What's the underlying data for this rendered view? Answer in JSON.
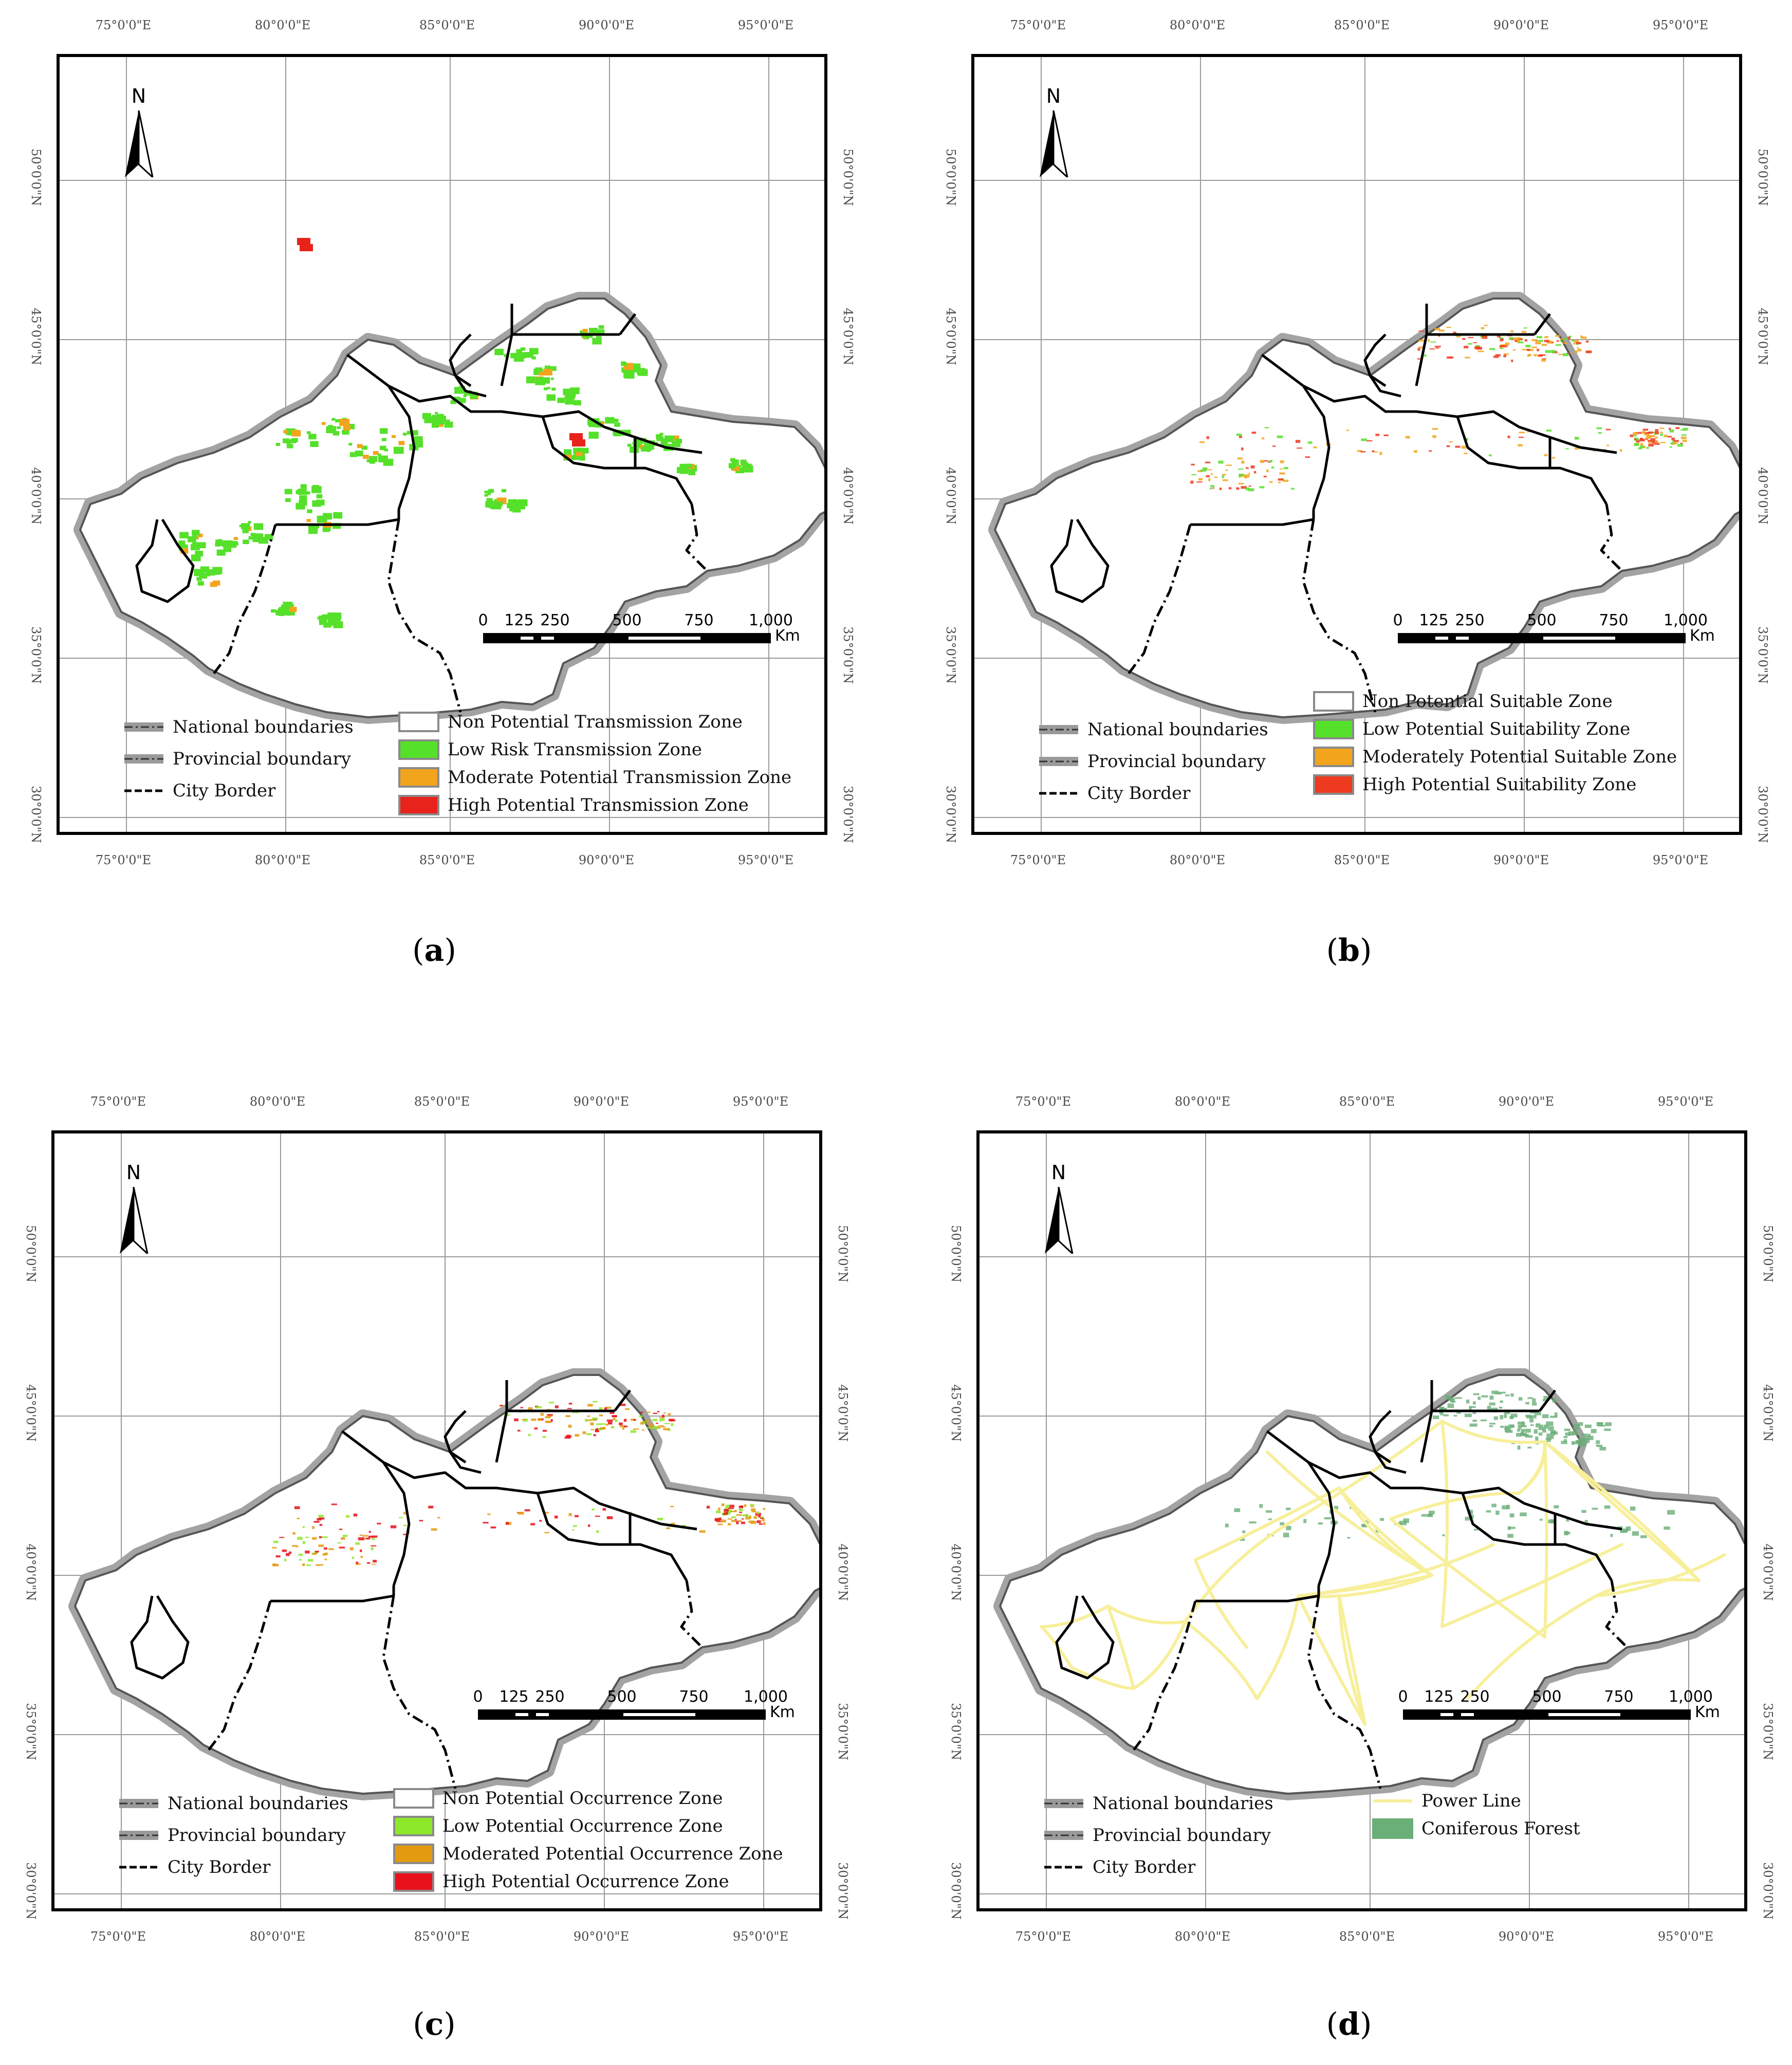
{
  "panels": [
    {
      "id": "a",
      "caption_open": "(",
      "caption_letter": "a",
      "caption_close": ")",
      "legend_left": [
        "National boundaries",
        "Provincial boundary",
        "City Border"
      ],
      "legend_right": [
        {
          "label": "Non Potential Transmission Zone",
          "color": "#ffffff"
        },
        {
          "label": "Low Risk Transmission Zone",
          "color": "#55e02a"
        },
        {
          "label": "Moderate Potential Transmission Zone",
          "color": "#f2a41c"
        },
        {
          "label": "High Potential Transmission Zone",
          "color": "#e8231c"
        }
      ],
      "lon_ticks_top": [
        "75°0'0\"E",
        "80°0'0\"E",
        "85°0'0\"E",
        "90°0'0\"E",
        "95°0'0\"E"
      ],
      "lon_ticks_bottom": [
        "75°0'0\"E",
        "80°0'0\"E",
        "85°0'0\"E",
        "90°0'0\"E",
        "95°0'0\"E"
      ],
      "lat_ticks": [
        "50°0'0\"N",
        "45°0'0\"N",
        "40°0'0\"N",
        "35°0'0\"N",
        "30°0'0\"N"
      ],
      "scale_labels": [
        "0",
        "125",
        "250",
        "500",
        "750",
        "1,000"
      ],
      "scale_unit": "Km",
      "north": "N"
    },
    {
      "id": "b",
      "caption_open": "(",
      "caption_letter": "b",
      "caption_close": ")",
      "legend_left": [
        "National boundaries",
        "Provincial boundary",
        "City Border"
      ],
      "legend_right": [
        {
          "label": "Non Potential Suitable Zone",
          "color": "#ffffff"
        },
        {
          "label": "Low Potential Suitability Zone",
          "color": "#55e02a"
        },
        {
          "label": "Moderately Potential Suitable Zone",
          "color": "#f2a41c"
        },
        {
          "label": "High Potential Suitability Zone",
          "color": "#ee3a1e"
        }
      ],
      "lon_ticks_top": [
        "75°0'0\"E",
        "80°0'0\"E",
        "85°0'0\"E",
        "90°0'0\"E",
        "95°0'0\"E"
      ],
      "lon_ticks_bottom": [
        "75°0'0\"E",
        "80°0'0\"E",
        "85°0'0\"E",
        "90°0'0\"E",
        "95°0'0\"E"
      ],
      "lat_ticks": [
        "50°0'0\"N",
        "45°0'0\"N",
        "40°0'0\"N",
        "35°0'0\"N",
        "30°0'0\"N"
      ],
      "scale_labels": [
        "0",
        "125",
        "250",
        "500",
        "750",
        "1,000"
      ],
      "scale_unit": "Km",
      "north": "N"
    },
    {
      "id": "c",
      "caption_open": "(",
      "caption_letter": "c",
      "caption_close": ")",
      "legend_left": [
        "National boundaries",
        "Provincial boundary",
        "City Border"
      ],
      "legend_right": [
        {
          "label": "Non Potential Occurrence Zone",
          "color": "#ffffff"
        },
        {
          "label": "Low Potential Occurrence Zone",
          "color": "#8de82a"
        },
        {
          "label": "Moderated Potential Occurrence Zone",
          "color": "#e49a10"
        },
        {
          "label": "High Potential Occurrence Zone",
          "color": "#e8111c"
        }
      ],
      "lon_ticks_top": [
        "75°0'0\"E",
        "80°0'0\"E",
        "85°0'0\"E",
        "90°0'0\"E",
        "95°0'0\"E"
      ],
      "lon_ticks_bottom": [
        "75°0'0\"E",
        "80°0'0\"E",
        "85°0'0\"E",
        "90°0'0\"E",
        "95°0'0\"E"
      ],
      "lat_ticks": [
        "50°0'0\"N",
        "45°0'0\"N",
        "40°0'0\"N",
        "35°0'0\"N",
        "30°0'0\"N"
      ],
      "scale_labels": [
        "0",
        "125",
        "250",
        "500",
        "750",
        "1,000"
      ],
      "scale_unit": "Km",
      "north": "N"
    },
    {
      "id": "d",
      "caption_open": "(",
      "caption_letter": "d",
      "caption_close": ")",
      "legend_left": [
        "National boundaries",
        "Provincial boundary",
        "City Border"
      ],
      "legend_right": [
        {
          "label": "Power Line",
          "color": "#f7ef9a",
          "kind": "line"
        },
        {
          "label": "Coniferous Forest",
          "color": "#6aae78",
          "kind": "box"
        }
      ],
      "lon_ticks_top": [
        "75°0'0\"E",
        "80°0'0\"E",
        "85°0'0\"E",
        "90°0'0\"E",
        "95°0'0\"E"
      ],
      "lon_ticks_bottom": [
        "75°0'0\"E",
        "80°0'0\"E",
        "85°0'0\"E",
        "90°0'0\"E",
        "95°0'0\"E"
      ],
      "lat_ticks": [
        "50°0'0\"N",
        "45°0'0\"N",
        "40°0'0\"N",
        "35°0'0\"N",
        "30°0'0\"N"
      ],
      "scale_labels": [
        "0",
        "125",
        "250",
        "500",
        "750",
        "1,000"
      ],
      "scale_unit": "Km",
      "north": "N"
    }
  ]
}
